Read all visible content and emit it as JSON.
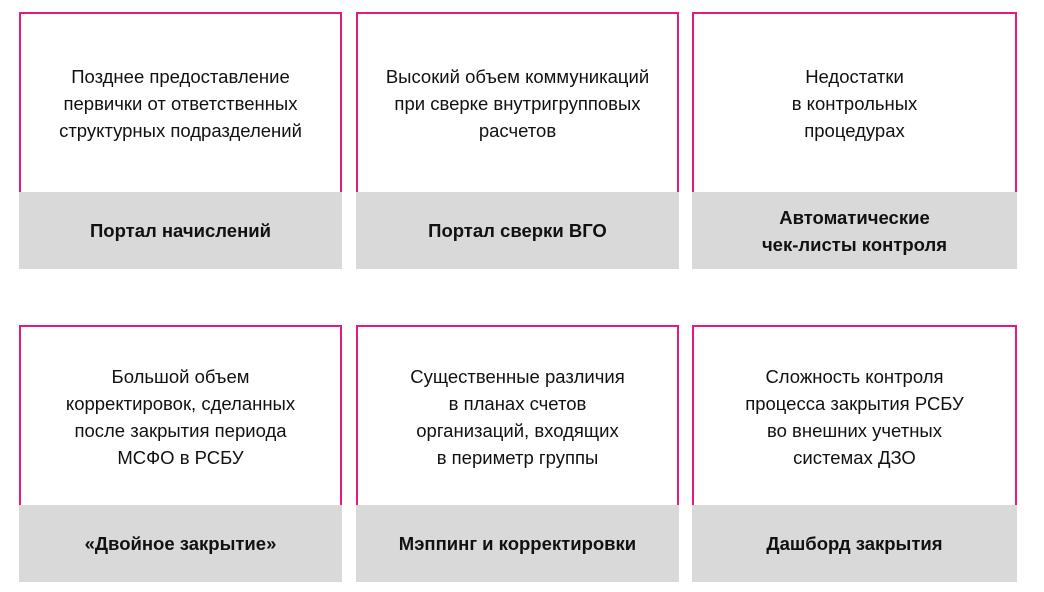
{
  "accent_color": "#e5197e",
  "cards": [
    {
      "problem": "Позднее предоставление\nпервички от ответственных\nструктурных подразделений",
      "solution": "Портал начислений"
    },
    {
      "problem": "Высокий объем коммуникаций\nпри сверке внутригрупповых\nрасчетов",
      "solution": "Портал сверки ВГО"
    },
    {
      "problem": "Недостатки\nв контрольных\nпроцедурах",
      "solution": "Автоматические\nчек-листы контроля"
    },
    {
      "problem": "Большой объем\nкорректировок, сделанных\nпосле закрытия периода\nМСФО в РСБУ",
      "solution": "«Двойное закрытие»"
    },
    {
      "problem": "Существенные различия\nв планах счетов\nорганизаций, входящих\nв периметр группы",
      "solution": "Мэппинг и корректировки"
    },
    {
      "problem": "Сложность контроля\nпроцесса закрытия РСБУ\nво внешних учетных\nсистемах ДЗО",
      "solution": "Дашборд закрытия"
    }
  ]
}
